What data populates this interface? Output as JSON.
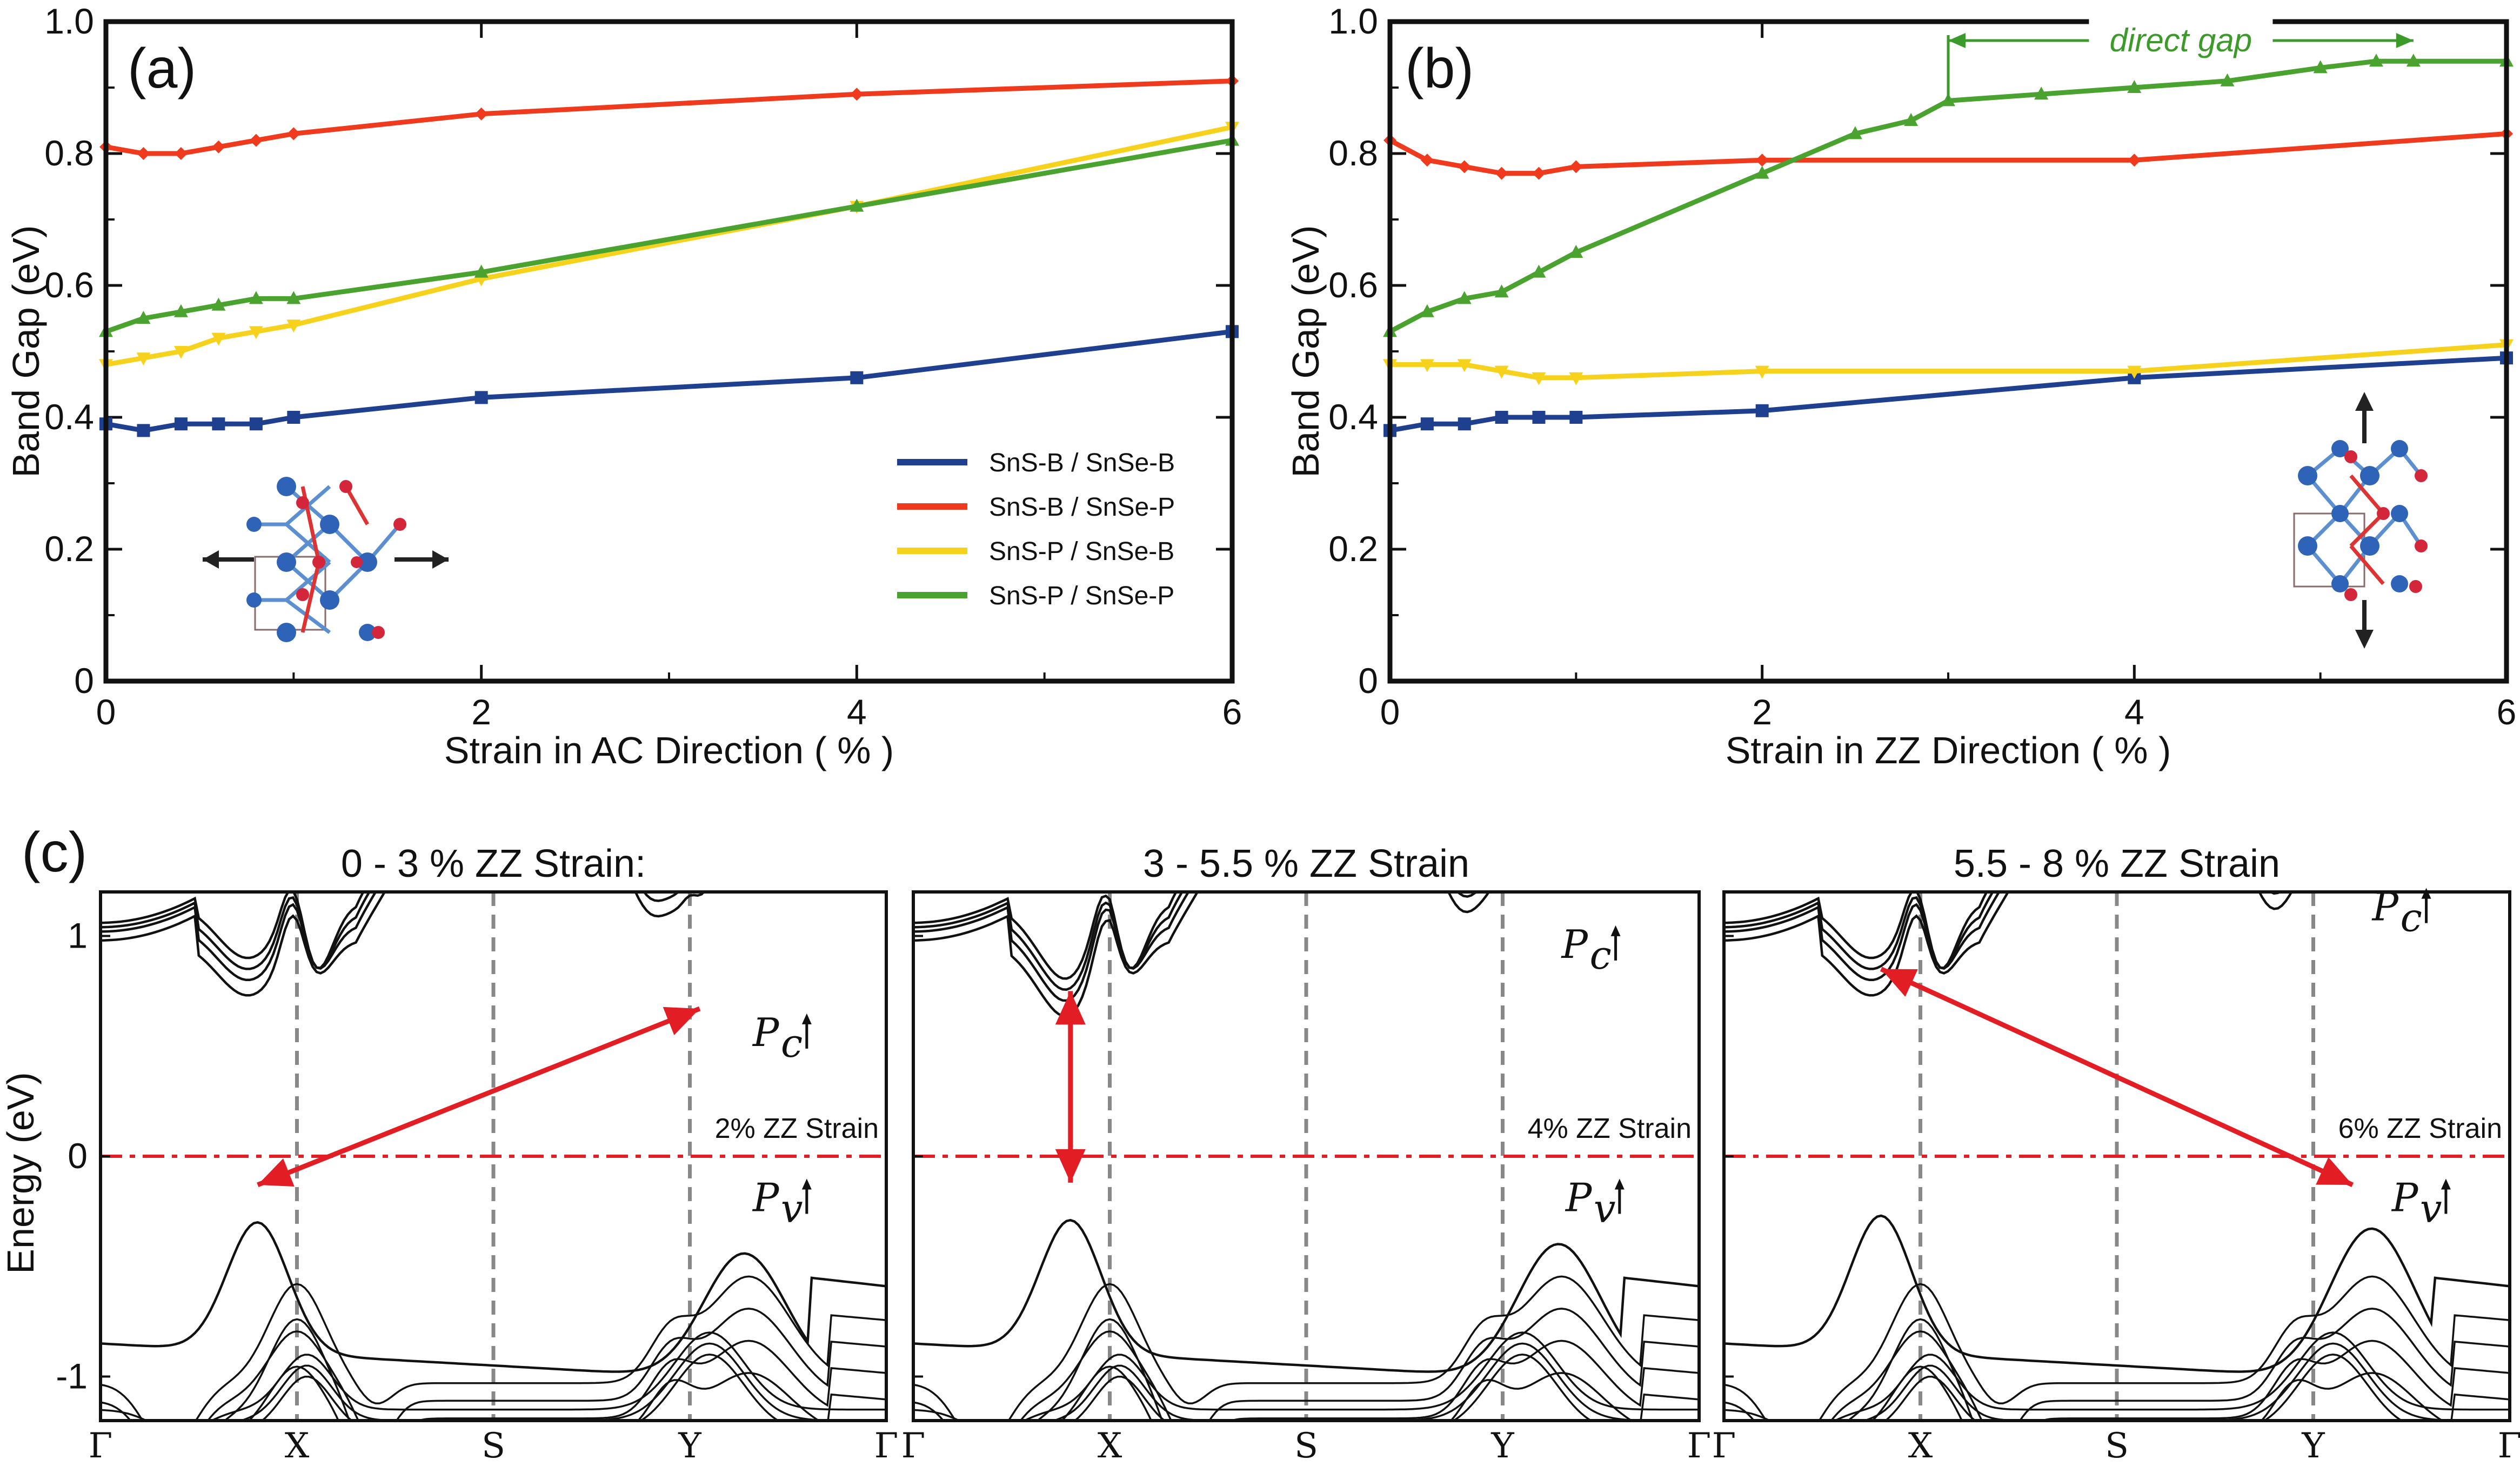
{
  "chart_data": [
    {
      "type": "line",
      "panel_label": "(a)",
      "xlabel": "Strain in AC Direction ( % )",
      "ylabel": "Band Gap (eV)",
      "xlim": [
        0,
        6
      ],
      "ylim": [
        0,
        1.0
      ],
      "xticks": [
        0,
        2,
        4,
        6
      ],
      "yticks": [
        "0",
        "0.2",
        "0.4",
        "0.6",
        "0.8",
        "1.0"
      ],
      "legend_position": "lower-right",
      "series": [
        {
          "name": "SnS-B / SnSe-B",
          "color": "#1f3f8f",
          "marker": "square",
          "x": [
            0,
            0.2,
            0.4,
            0.6,
            0.8,
            1.0,
            2,
            4,
            6
          ],
          "y": [
            0.39,
            0.38,
            0.39,
            0.39,
            0.39,
            0.4,
            0.43,
            0.46,
            0.53
          ]
        },
        {
          "name": "SnS-B / SnSe-P",
          "color": "#ef3a1d",
          "marker": "diamond",
          "x": [
            0,
            0.2,
            0.4,
            0.6,
            0.8,
            1.0,
            2,
            4,
            6
          ],
          "y": [
            0.81,
            0.8,
            0.8,
            0.81,
            0.82,
            0.83,
            0.86,
            0.89,
            0.91
          ]
        },
        {
          "name": "SnS-P / SnSe-B",
          "color": "#f7d21c",
          "marker": "triangle-down",
          "x": [
            0,
            0.2,
            0.4,
            0.6,
            0.8,
            1.0,
            2,
            4,
            6
          ],
          "y": [
            0.48,
            0.49,
            0.5,
            0.52,
            0.53,
            0.54,
            0.61,
            0.72,
            0.84
          ]
        },
        {
          "name": "SnS-P / SnSe-P",
          "color": "#4aa22f",
          "marker": "triangle-up",
          "x": [
            0,
            0.2,
            0.4,
            0.6,
            0.8,
            1.0,
            2,
            4,
            6
          ],
          "y": [
            0.53,
            0.55,
            0.56,
            0.57,
            0.58,
            0.58,
            0.62,
            0.72,
            0.82
          ]
        }
      ]
    },
    {
      "type": "line",
      "panel_label": "(b)",
      "xlabel": "Strain in ZZ Direction ( % )",
      "ylabel": "Band Gap (eV)",
      "xlim": [
        0,
        6
      ],
      "ylim": [
        0,
        1.0
      ],
      "xticks": [
        0,
        2,
        4,
        6
      ],
      "yticks": [
        "0",
        "0.2",
        "0.4",
        "0.6",
        "0.8",
        "1.0"
      ],
      "annotation": "direct gap",
      "annotation_range": [
        3.0,
        5.5
      ],
      "series": [
        {
          "name": "SnS-B / SnSe-B",
          "color": "#1f3f8f",
          "marker": "square",
          "x": [
            0,
            0.2,
            0.4,
            0.6,
            0.8,
            1.0,
            2,
            4,
            6
          ],
          "y": [
            0.38,
            0.39,
            0.39,
            0.4,
            0.4,
            0.4,
            0.41,
            0.46,
            0.49
          ]
        },
        {
          "name": "SnS-B / SnSe-P",
          "color": "#ef3a1d",
          "marker": "diamond",
          "x": [
            0,
            0.2,
            0.4,
            0.6,
            0.8,
            1.0,
            2,
            4,
            6
          ],
          "y": [
            0.82,
            0.79,
            0.78,
            0.77,
            0.77,
            0.78,
            0.79,
            0.79,
            0.83
          ]
        },
        {
          "name": "SnS-P / SnSe-B",
          "color": "#f7d21c",
          "marker": "triangle-down",
          "x": [
            0,
            0.2,
            0.4,
            0.6,
            0.8,
            1.0,
            2,
            4,
            6
          ],
          "y": [
            0.48,
            0.48,
            0.48,
            0.47,
            0.46,
            0.46,
            0.47,
            0.47,
            0.51
          ]
        },
        {
          "name": "SnS-P / SnSe-P",
          "color": "#4aa22f",
          "marker": "triangle-up",
          "x": [
            0,
            0.2,
            0.4,
            0.6,
            0.8,
            1.0,
            2,
            2.5,
            2.8,
            3.0,
            3.5,
            4.0,
            4.5,
            5.0,
            5.3,
            5.5,
            6.0
          ],
          "y": [
            0.53,
            0.56,
            0.58,
            0.59,
            0.62,
            0.65,
            0.77,
            0.83,
            0.85,
            0.88,
            0.89,
            0.9,
            0.91,
            0.93,
            0.94,
            0.94,
            0.94
          ]
        }
      ]
    },
    {
      "type": "line",
      "panel_label": "(c)",
      "ylabel": "Energy (eV)",
      "ylim": [
        -1.2,
        1.2
      ],
      "yticks": [
        "1",
        "0",
        "-1"
      ],
      "kpoints": [
        "Γ",
        "X",
        "S",
        "Y",
        "Γ"
      ],
      "fermi_level": 0,
      "subpanels": [
        {
          "title": "0 - 3 % ZZ Strain:",
          "label": "2% ZZ Strain",
          "cbm_label": "P",
          "cbm_sub": "c",
          "vbm_label": "P",
          "vbm_sub": "v",
          "vbm_k": 0.8,
          "vbm_e": -0.13,
          "cbm_k": 3.05,
          "cbm_e": 0.67
        },
        {
          "title": "3 - 5.5 % ZZ Strain",
          "label": "4% ZZ Strain",
          "cbm_label": "P",
          "cbm_sub": "c",
          "vbm_label": "P",
          "vbm_sub": "v",
          "vbm_k": 0.8,
          "vbm_e": -0.12,
          "cbm_k": 0.8,
          "cbm_e": 0.75
        },
        {
          "title": "5.5 - 8 % ZZ Strain",
          "label": "6% ZZ Strain",
          "cbm_label": "P",
          "cbm_sub": "c",
          "vbm_label": "P",
          "vbm_sub": "v",
          "vbm_k": 3.2,
          "vbm_e": -0.13,
          "cbm_k": 0.8,
          "cbm_e": 0.85
        }
      ]
    }
  ],
  "legend": [
    {
      "label": "SnS-B / SnSe-B",
      "color": "#1f3f8f"
    },
    {
      "label": "SnS-B / SnSe-P",
      "color": "#ef3a1d"
    },
    {
      "label": "SnS-P / SnSe-B",
      "color": "#f7d21c"
    },
    {
      "label": "SnS-P / SnSe-P",
      "color": "#4aa22f"
    }
  ]
}
